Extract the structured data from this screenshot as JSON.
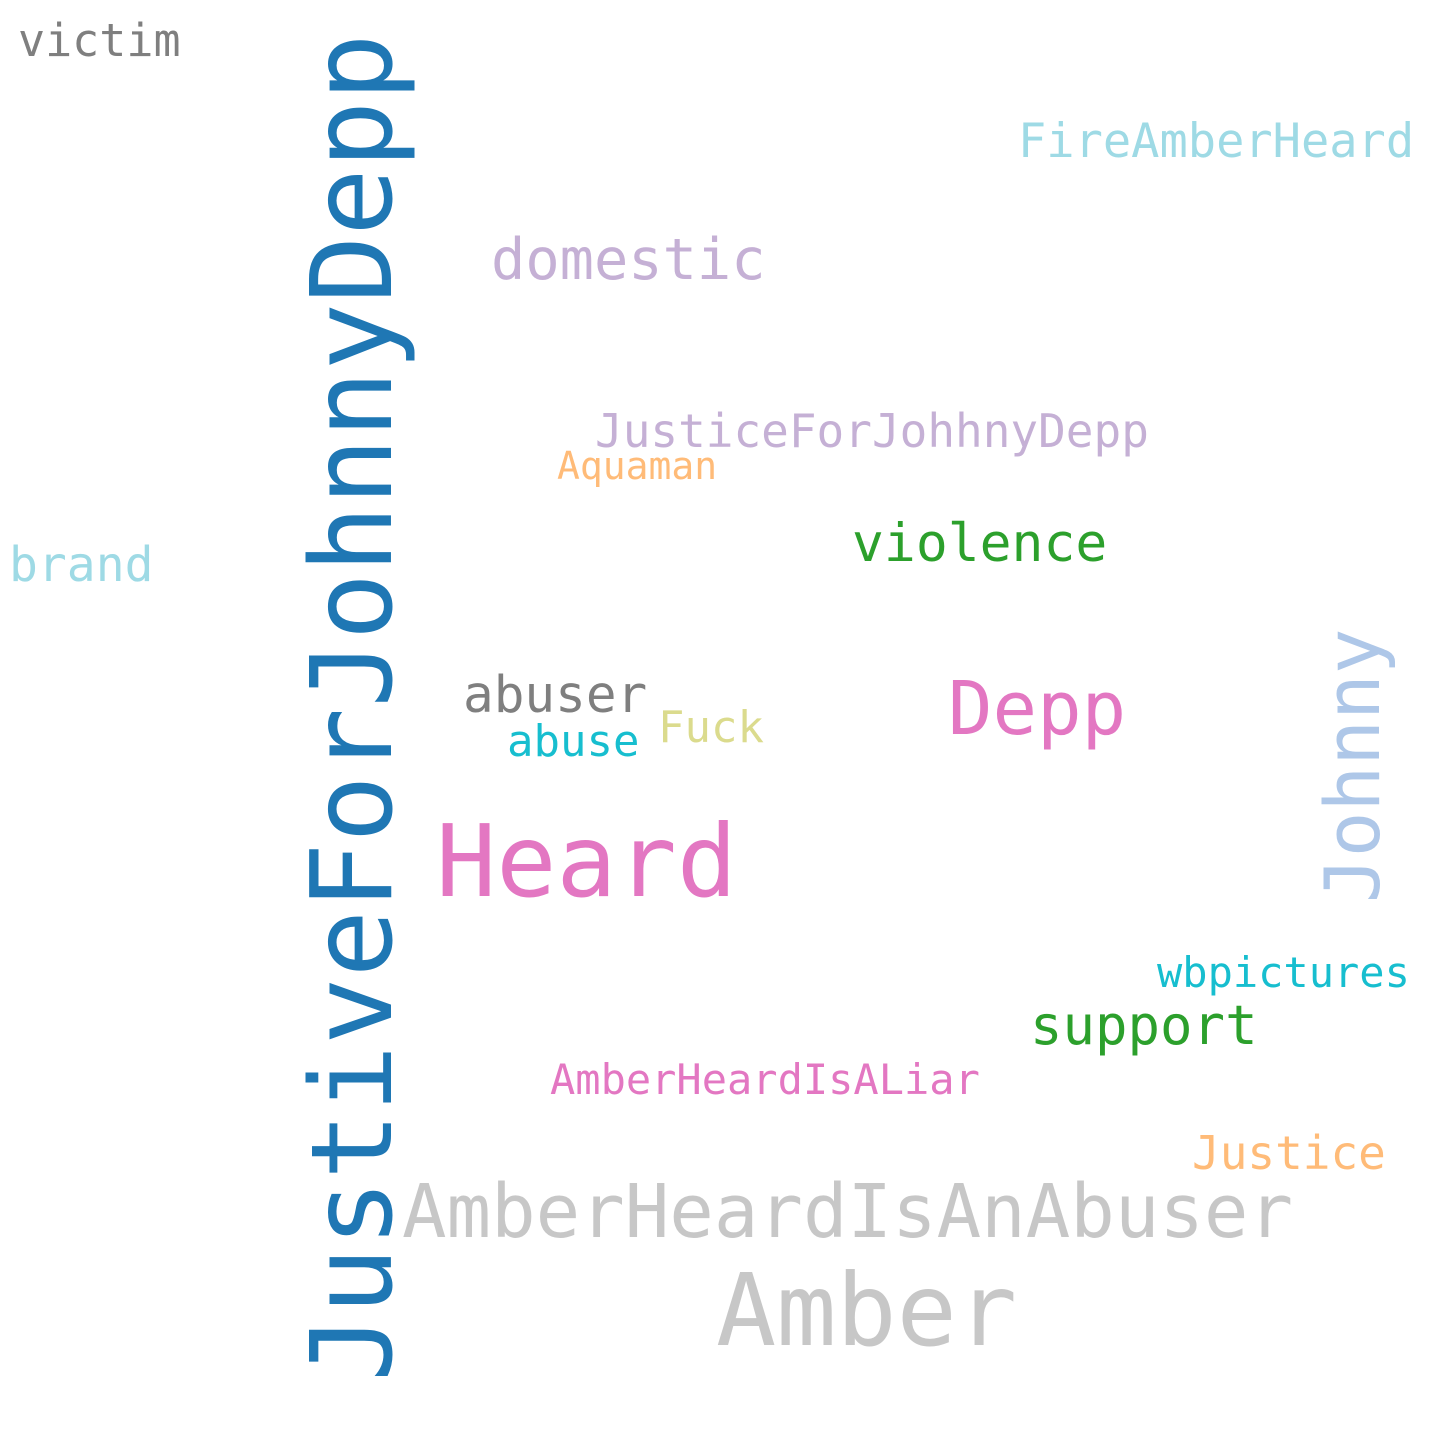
{
  "word_cloud": {
    "words": [
      {
        "id": "justiceforjohnnydepp",
        "text": "JustiveForJohnnyDepp",
        "color": "#1f77b4",
        "rotated": true
      },
      {
        "id": "amber",
        "text": "Amber",
        "color": "#c7c7c7",
        "rotated": false
      },
      {
        "id": "heard",
        "text": "Heard",
        "color": "#e377c2",
        "rotated": false
      },
      {
        "id": "amberheardisanabuser",
        "text": "AmberHeardIsAnAbuser",
        "color": "#c7c7c7",
        "rotated": false
      },
      {
        "id": "johnny",
        "text": "Johnny",
        "color": "#aec7e8",
        "rotated": true
      },
      {
        "id": "depp",
        "text": "Depp",
        "color": "#e377c2",
        "rotated": false
      },
      {
        "id": "domestic",
        "text": "domestic",
        "color": "#c5b0d5",
        "rotated": false
      },
      {
        "id": "violence",
        "text": "violence",
        "color": "#2ca02c",
        "rotated": false
      },
      {
        "id": "support",
        "text": "support",
        "color": "#2ca02c",
        "rotated": false
      },
      {
        "id": "abuser",
        "text": "abuser",
        "color": "#7f7f7f",
        "rotated": false
      },
      {
        "id": "brand",
        "text": "brand",
        "color": "#9edae5",
        "rotated": false
      },
      {
        "id": "firamberheard",
        "text": "FireAmberHeard",
        "color": "#9edae5",
        "rotated": false
      },
      {
        "id": "justice",
        "text": "Justice",
        "color": "#ffbb78",
        "rotated": false
      },
      {
        "id": "justiceforjohhnydepp",
        "text": "JusticeForJohhnyDepp",
        "color": "#c5b0d5",
        "rotated": false
      },
      {
        "id": "victim",
        "text": "victim",
        "color": "#7f7f7f",
        "rotated": false
      },
      {
        "id": "abuse",
        "text": "abuse",
        "color": "#17becf",
        "rotated": false
      },
      {
        "id": "fuck",
        "text": "Fuck",
        "color": "#dbdb8d",
        "rotated": false
      },
      {
        "id": "wbpictures",
        "text": "wbpictures",
        "color": "#17becf",
        "rotated": false
      },
      {
        "id": "amberheardisaliar",
        "text": "AmberHeardIsALiar",
        "color": "#e377c2",
        "rotated": false
      },
      {
        "id": "aquaman",
        "text": "Aquaman",
        "color": "#ffbb78",
        "rotated": false
      }
    ]
  }
}
